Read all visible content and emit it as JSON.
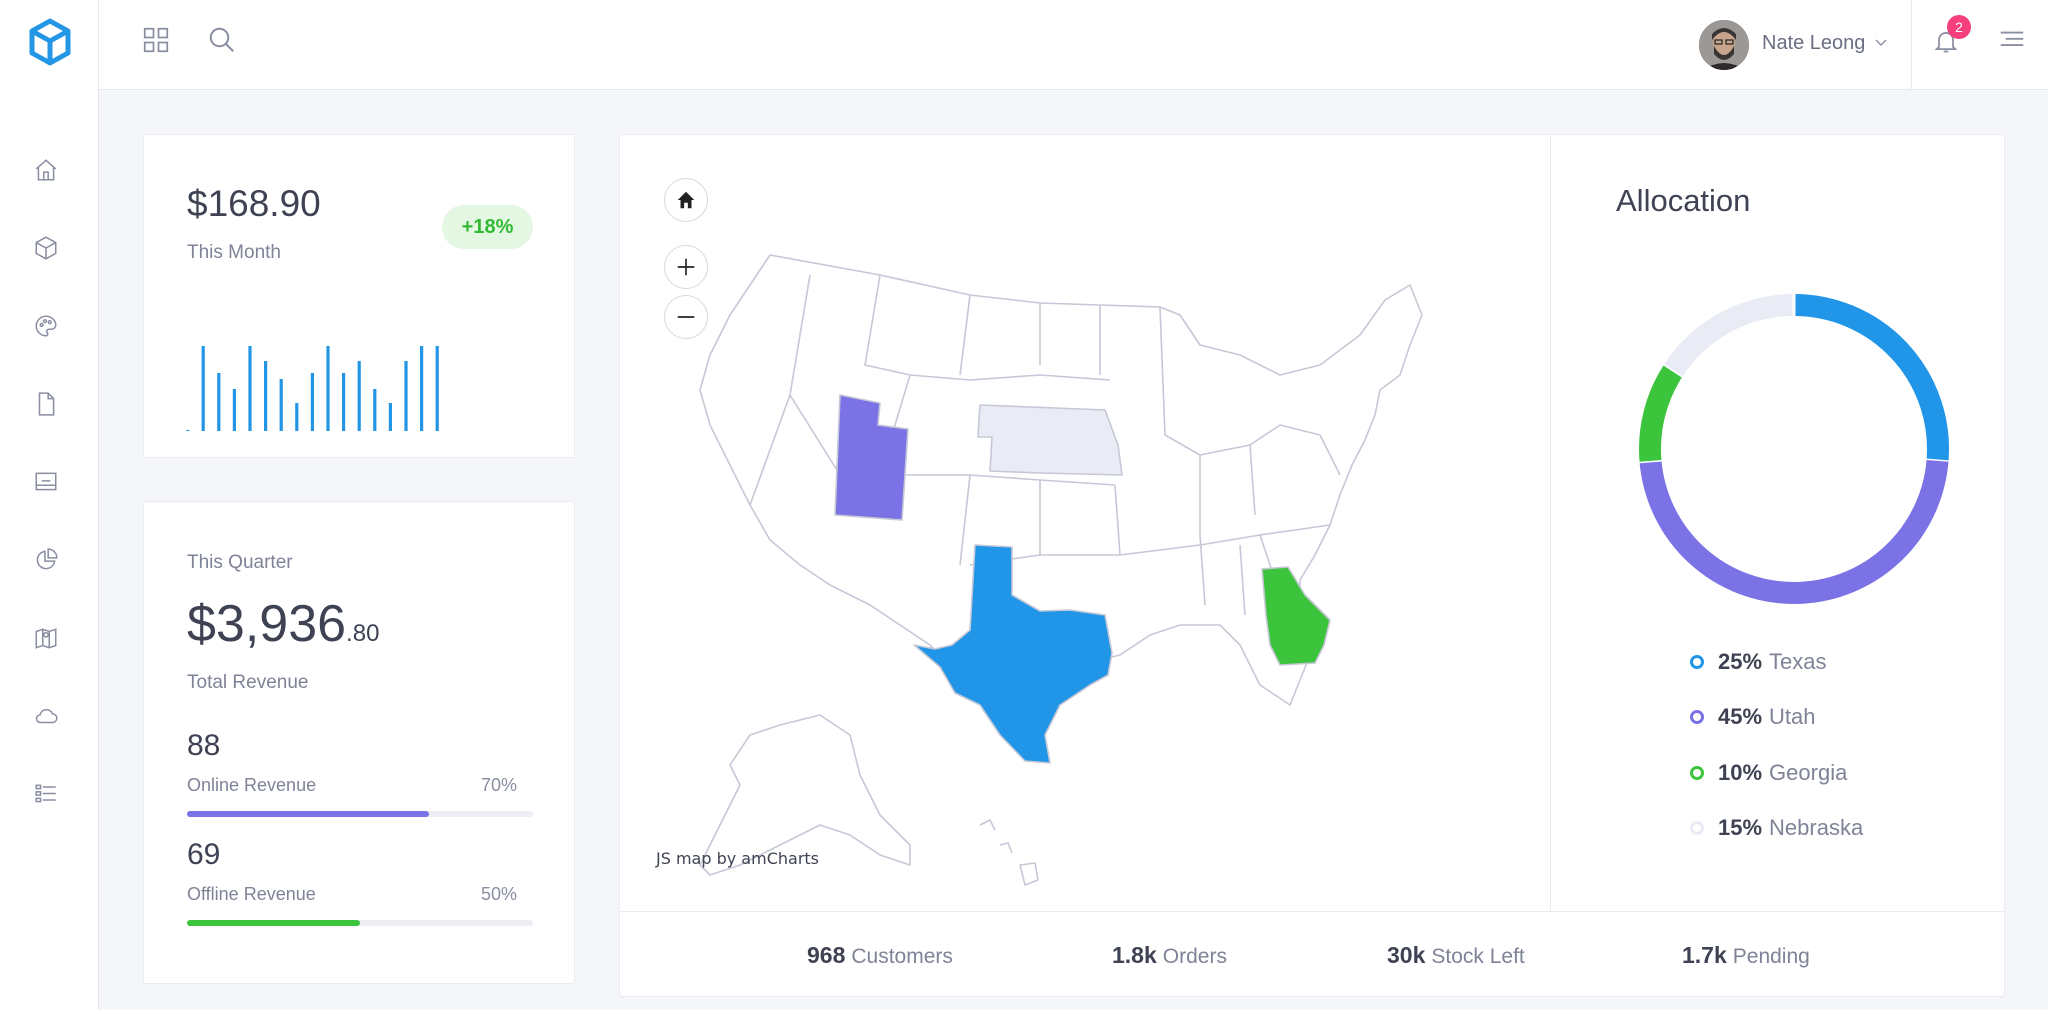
{
  "header": {
    "user_name": "Nate Leong",
    "notification_count": "2"
  },
  "sidebar": {
    "items": [
      {
        "icon": "home-icon"
      },
      {
        "icon": "cube-icon"
      },
      {
        "icon": "palette-icon"
      },
      {
        "icon": "file-icon"
      },
      {
        "icon": "monitor-icon"
      },
      {
        "icon": "pie-chart-icon"
      },
      {
        "icon": "map-icon"
      },
      {
        "icon": "cloud-icon"
      },
      {
        "icon": "list-icon"
      }
    ]
  },
  "month_card": {
    "amount": "$168.90",
    "label": "This Month",
    "change": "+18%",
    "chart_data": {
      "type": "bar",
      "values": [
        0.3,
        85,
        58,
        42,
        85,
        70,
        52,
        28,
        58,
        85,
        58,
        70,
        42,
        28,
        70,
        85,
        85
      ],
      "ylim": [
        0,
        100
      ],
      "color": "#2496e6"
    }
  },
  "quarter_card": {
    "label": "This Quarter",
    "amount_main": "$3,936",
    "amount_cents": ".80",
    "total_label": "Total Revenue",
    "online": {
      "value": "88",
      "label": "Online Revenue",
      "percent": "70%",
      "fill": 0.7,
      "color": "#7a72e5"
    },
    "offline": {
      "value": "69",
      "label": "Offline Revenue",
      "percent": "50%",
      "fill": 0.5,
      "color": "#3dc43d"
    }
  },
  "map": {
    "credit": "JS map by amCharts",
    "highlighted_states": [
      {
        "state": "Texas",
        "color": "#2196e8"
      },
      {
        "state": "Utah",
        "color": "#7a72e5"
      },
      {
        "state": "Georgia",
        "color": "#3dc43d"
      },
      {
        "state": "Nebraska",
        "color": "#e9ecf5"
      }
    ]
  },
  "allocation": {
    "title": "Allocation",
    "chart_data": {
      "type": "pie",
      "slices": [
        {
          "label": "Texas",
          "percent_text": "25%",
          "value": 25,
          "color": "#2196e8"
        },
        {
          "label": "Utah",
          "percent_text": "45%",
          "value": 45,
          "color": "#7a72e5"
        },
        {
          "label": "Georgia",
          "percent_text": "10%",
          "value": 10,
          "color": "#3dc43d"
        },
        {
          "label": "Nebraska",
          "percent_text": "15%",
          "value": 15,
          "color": "#e9ecf5"
        }
      ]
    }
  },
  "bottom_stats": [
    {
      "value": "968",
      "label": "Customers"
    },
    {
      "value": "1.8k",
      "label": "Orders"
    },
    {
      "value": "30k",
      "label": "Stock Left"
    },
    {
      "value": "1.7k",
      "label": "Pending"
    }
  ]
}
